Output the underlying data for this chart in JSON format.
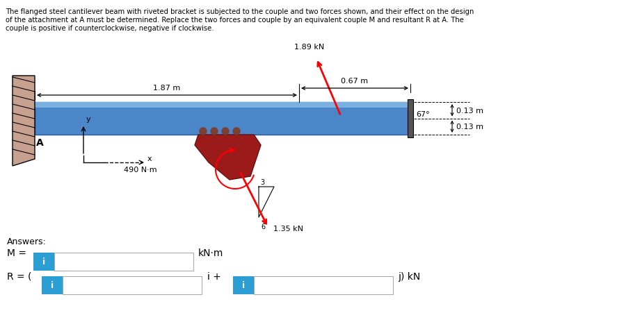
{
  "title_line1": "The flanged steel cantilever beam with riveted bracket is subjected to the couple and two forces shown, and their effect on the design",
  "title_line2": "of the attachment at A must be determined. Replace the two forces and couple by an equivalent couple M and resultant R at A. The",
  "title_line3": "couple is positive if counterclockwise, negative if clockwise.",
  "bg_color": "#ffffff",
  "beam_color_main": "#4a86c8",
  "beam_color_top": "#7ab0e0",
  "beam_color_edge": "#2a5a9a",
  "wall_color": "#c8a090",
  "bracket_color": "#9b1a1a",
  "box_color": "#2b9fd4",
  "force1_label": "1.89 kN",
  "force2_label": "1.35 kN",
  "couple_label": "490 N·m",
  "dim1_label": "1.87 m",
  "dim2_label": "0.67 m",
  "dim3_label": "0.13 m",
  "dim4_label": "0.13 m",
  "angle_label": "67°",
  "ratio_3": "3",
  "ratio_6": "6",
  "A_label": "A",
  "x_label": "x",
  "y_label": "y",
  "answers_label": "Answers:",
  "M_label": "M =",
  "M_unit": "kN·m",
  "R_label": "R = (",
  "R_mid": "i +",
  "R_end": "j) kN"
}
